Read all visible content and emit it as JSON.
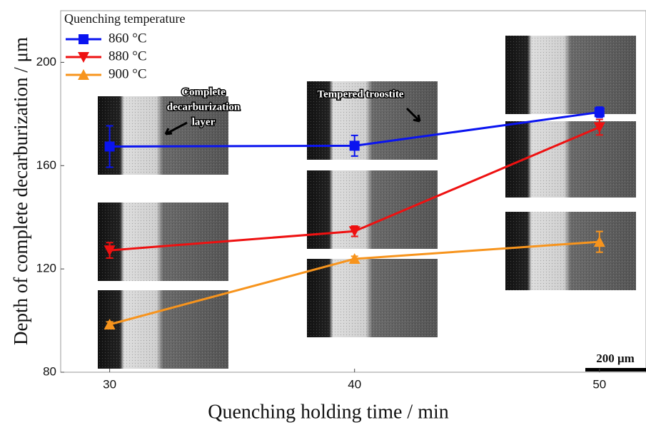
{
  "chart_data": {
    "type": "line",
    "x_label": "Quenching holding time / min",
    "y_label": "Depth of complete decarburization / μm",
    "legend_title": "Quenching temperature",
    "x": [
      30,
      40,
      50
    ],
    "xlim": [
      28,
      51.9
    ],
    "xticks": [
      30,
      40,
      50
    ],
    "ylim": [
      80,
      220
    ],
    "yticks": [
      80,
      120,
      160,
      200
    ],
    "series": [
      {
        "name": "860 °C",
        "color": "#0a14f0",
        "marker": "square",
        "values": [
          167.4,
          167.7,
          180.7
        ],
        "errors": [
          8,
          4,
          2
        ]
      },
      {
        "name": "880 °C",
        "color": "#ee1111",
        "marker": "triangle-down",
        "values": [
          127.2,
          134.6,
          174.9
        ],
        "errors": [
          3,
          2,
          3
        ]
      },
      {
        "name": "900 °C",
        "color": "#f7941d",
        "marker": "triangle-up",
        "values": [
          98.5,
          123.9,
          130.5
        ],
        "errors": [
          1,
          1,
          4
        ]
      }
    ],
    "annotations": {
      "decarburization": [
        "Complete",
        "decarburization",
        "layer"
      ],
      "troostite": "Tempered troostite",
      "scale_bar": "200 μm"
    }
  }
}
